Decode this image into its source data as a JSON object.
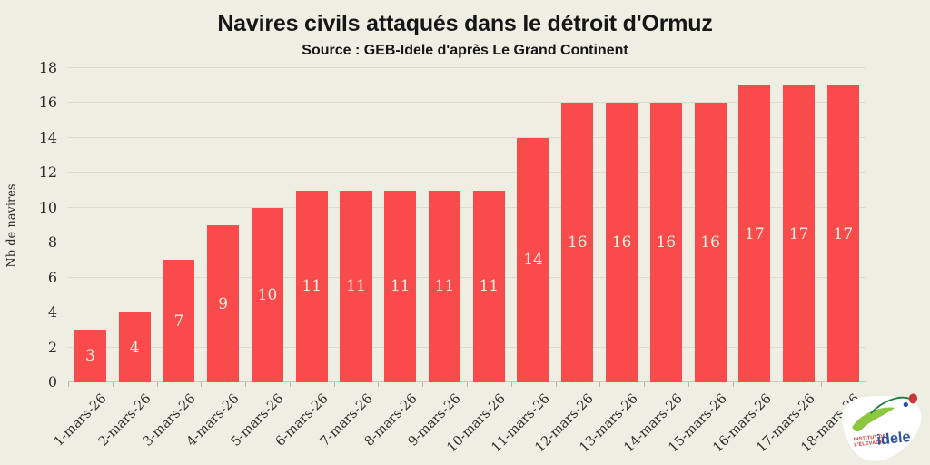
{
  "chart_data": {
    "type": "bar",
    "title": "Navires civils attaqués dans le détroit d'Ormuz",
    "subtitle": "Source : GEB-Idele d'après Le Grand Continent",
    "xlabel": "",
    "ylabel": "Nb de navires",
    "categories": [
      "1-mars-26",
      "2-mars-26",
      "3-mars-26",
      "4-mars-26",
      "5-mars-26",
      "6-mars-26",
      "7-mars-26",
      "8-mars-26",
      "9-mars-26",
      "10-mars-26",
      "11-mars-26",
      "12-mars-26",
      "13-mars-26",
      "14-mars-26",
      "15-mars-26",
      "16-mars-26",
      "17-mars-26",
      "18-mars-26"
    ],
    "values": [
      3,
      4,
      7,
      9,
      10,
      11,
      11,
      11,
      11,
      11,
      14,
      16,
      16,
      16,
      16,
      17,
      17,
      17
    ],
    "ylim": [
      0,
      18
    ],
    "yticks": [
      0,
      2,
      4,
      6,
      8,
      10,
      12,
      14,
      16,
      18
    ],
    "grid": true,
    "legend": false,
    "bar_labels_visible": true,
    "x_label_rotation_deg": -45
  },
  "colors": {
    "background": "#EFEEE2",
    "bar": "#F94B4B",
    "bar_label": "#F5EFE1",
    "grid": "#DCDBCE",
    "baseline": "#C9C8BA",
    "tick": "#B7B6AA",
    "axis_text": "#2E2D2A",
    "title_text": "#161616",
    "logo_green": "#8DC63F",
    "logo_dark_green": "#1B7B3C",
    "logo_red": "#C8373B",
    "logo_blue": "#2B52A0"
  },
  "logo": {
    "org_line1": "INSTITUT DE",
    "org_line2": "L'ÉLEVAGE",
    "brand": "idele"
  }
}
